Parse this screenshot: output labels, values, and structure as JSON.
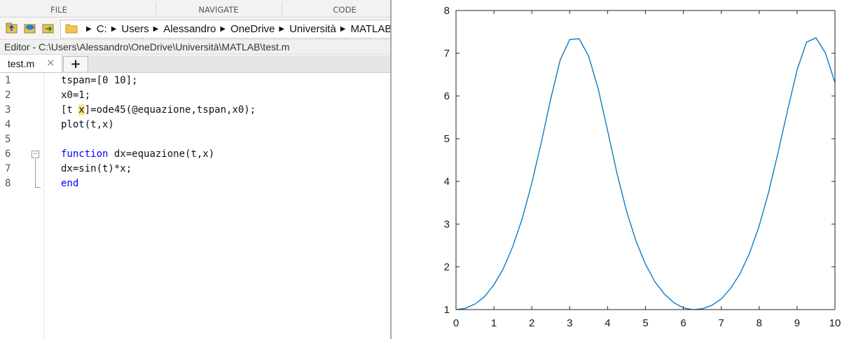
{
  "toolstrip": {
    "sections": [
      "FILE",
      "NAVIGATE",
      "CODE"
    ]
  },
  "address_bar": {
    "folder_icon": "folder-icon",
    "path": [
      "C:",
      "Users",
      "Alessandro",
      "OneDrive",
      "Università",
      "MATLAB"
    ]
  },
  "editor": {
    "title": "Editor - C:\\Users\\Alessandro\\OneDrive\\Università\\MATLAB\\test.m",
    "tab_label": "test.m",
    "tab_close": "✕",
    "add_tab": "+",
    "lines": [
      {
        "num": "1",
        "text": "tspan=[0 10];"
      },
      {
        "num": "2",
        "text": "x0=1;"
      },
      {
        "num": "3",
        "text": "[t x]=ode45(@equazione,tspan,x0);"
      },
      {
        "num": "4",
        "text": "plot(t,x)"
      },
      {
        "num": "5",
        "text": ""
      },
      {
        "num": "6",
        "text": "function dx=equazione(t,x)"
      },
      {
        "num": "7",
        "text": "dx=sin(t)*x;"
      },
      {
        "num": "8",
        "text": "end"
      }
    ]
  },
  "colors": {
    "keyword": "#0000ff",
    "highlight": "#f7e58c",
    "line": "#0072bd"
  },
  "chart_data": {
    "type": "line",
    "title": "",
    "xlabel": "",
    "ylabel": "",
    "xlim": [
      0,
      10
    ],
    "ylim": [
      1,
      8
    ],
    "xticks": [
      0,
      1,
      2,
      3,
      4,
      5,
      6,
      7,
      8,
      9,
      10
    ],
    "yticks": [
      1,
      2,
      3,
      4,
      5,
      6,
      7,
      8
    ],
    "series": [
      {
        "color": "#0072bd",
        "x": [
          0.0,
          0.25,
          0.5,
          0.75,
          1.0,
          1.25,
          1.5,
          1.75,
          2.0,
          2.25,
          2.5,
          2.75,
          3.0,
          3.25,
          3.5,
          3.75,
          4.0,
          4.25,
          4.5,
          4.75,
          5.0,
          5.25,
          5.5,
          5.75,
          6.0,
          6.25,
          6.5,
          6.75,
          7.0,
          7.25,
          7.5,
          7.75,
          8.0,
          8.25,
          8.5,
          8.75,
          9.0,
          9.25,
          9.5,
          9.75,
          10.0
        ],
        "y": [
          1.0,
          1.03,
          1.13,
          1.3,
          1.58,
          1.96,
          2.48,
          3.14,
          3.96,
          4.91,
          5.94,
          6.85,
          7.32,
          7.34,
          6.93,
          6.17,
          5.19,
          4.18,
          3.3,
          2.6,
          2.06,
          1.65,
          1.36,
          1.16,
          1.04,
          1.0,
          1.02,
          1.1,
          1.25,
          1.5,
          1.85,
          2.33,
          2.96,
          3.75,
          4.68,
          5.67,
          6.61,
          7.26,
          7.36,
          7.0,
          6.31
        ]
      }
    ]
  }
}
